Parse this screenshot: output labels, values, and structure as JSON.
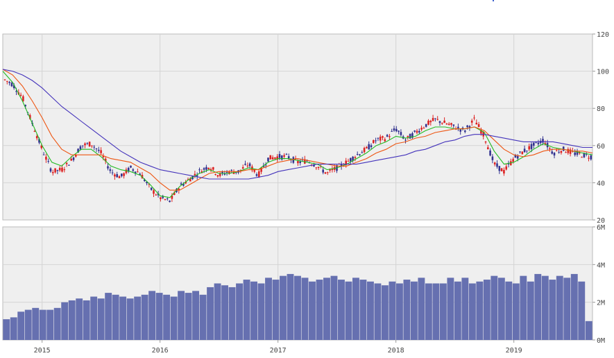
{
  "chart_data": [
    {
      "type": "candlestick",
      "title": "",
      "xlabel": "",
      "ylabel": "",
      "ylim": [
        20,
        120
      ],
      "y_ticks": [
        "20",
        "40",
        "60",
        "80",
        "100",
        "120"
      ],
      "x_ticks": [
        "2015",
        "2016",
        "2017",
        "2018",
        "2019"
      ],
      "x_range": [
        "2014-09",
        "2019-09"
      ],
      "grid": true,
      "up_color": "#dd2222",
      "down_color": "#33338f",
      "price_path": [
        [
          "2014-09-01",
          96
        ],
        [
          "2014-10-01",
          93
        ],
        [
          "2014-11-01",
          86
        ],
        [
          "2014-12-01",
          72
        ],
        [
          "2015-01-01",
          58
        ],
        [
          "2015-02-01",
          46
        ],
        [
          "2015-03-01",
          47
        ],
        [
          "2015-04-01",
          52
        ],
        [
          "2015-05-01",
          60
        ],
        [
          "2015-06-01",
          61
        ],
        [
          "2015-07-01",
          56
        ],
        [
          "2015-08-01",
          46
        ],
        [
          "2015-09-01",
          43
        ],
        [
          "2015-10-01",
          48
        ],
        [
          "2015-11-01",
          45
        ],
        [
          "2015-12-01",
          37
        ],
        [
          "2016-01-01",
          32
        ],
        [
          "2016-02-01",
          30
        ],
        [
          "2016-03-01",
          38
        ],
        [
          "2016-04-01",
          42
        ],
        [
          "2016-05-01",
          46
        ],
        [
          "2016-06-01",
          49
        ],
        [
          "2016-07-01",
          44
        ],
        [
          "2016-08-01",
          46
        ],
        [
          "2016-09-01",
          46
        ],
        [
          "2016-10-01",
          50
        ],
        [
          "2016-11-01",
          44
        ],
        [
          "2016-12-01",
          53
        ],
        [
          "2017-01-01",
          54
        ],
        [
          "2017-02-01",
          54
        ],
        [
          "2017-03-01",
          51
        ],
        [
          "2017-04-01",
          52
        ],
        [
          "2017-05-01",
          49
        ],
        [
          "2017-06-01",
          45
        ],
        [
          "2017-07-01",
          48
        ],
        [
          "2017-08-01",
          51
        ],
        [
          "2017-09-01",
          55
        ],
        [
          "2017-10-01",
          58
        ],
        [
          "2017-11-01",
          63
        ],
        [
          "2017-12-01",
          64
        ],
        [
          "2018-01-01",
          69
        ],
        [
          "2018-02-01",
          63
        ],
        [
          "2018-03-01",
          67
        ],
        [
          "2018-04-01",
          71
        ],
        [
          "2018-05-01",
          74
        ],
        [
          "2018-06-01",
          72
        ],
        [
          "2018-07-01",
          70
        ],
        [
          "2018-08-01",
          68
        ],
        [
          "2018-09-01",
          74
        ],
        [
          "2018-10-01",
          65
        ],
        [
          "2018-11-01",
          50
        ],
        [
          "2018-12-01",
          46
        ],
        [
          "2019-01-01",
          53
        ],
        [
          "2019-02-01",
          57
        ],
        [
          "2019-03-01",
          60
        ],
        [
          "2019-04-01",
          63
        ],
        [
          "2019-05-01",
          56
        ],
        [
          "2019-06-01",
          58
        ],
        [
          "2019-07-01",
          56
        ],
        [
          "2019-08-01",
          55
        ],
        [
          "2019-09-01",
          54
        ]
      ],
      "ma_series": [
        {
          "color": "#22bb22",
          "values": [
            [
              "2014-09-01",
              100
            ],
            [
              "2014-10-01",
              94
            ],
            [
              "2014-11-01",
              84
            ],
            [
              "2014-12-01",
              72
            ],
            [
              "2015-01-01",
              60
            ],
            [
              "2015-02-01",
              51
            ],
            [
              "2015-03-01",
              49
            ],
            [
              "2015-04-01",
              54
            ],
            [
              "2015-05-01",
              58
            ],
            [
              "2015-06-01",
              58
            ],
            [
              "2015-07-01",
              54
            ],
            [
              "2015-08-01",
              49
            ],
            [
              "2015-09-01",
              47
            ],
            [
              "2015-10-01",
              46
            ],
            [
              "2015-11-01",
              44
            ],
            [
              "2015-12-01",
              39
            ],
            [
              "2016-01-01",
              33
            ],
            [
              "2016-02-01",
              32
            ],
            [
              "2016-03-01",
              38
            ],
            [
              "2016-04-01",
              42
            ],
            [
              "2016-05-01",
              45
            ],
            [
              "2016-06-01",
              47
            ],
            [
              "2016-07-01",
              45
            ],
            [
              "2016-08-01",
              45
            ],
            [
              "2016-09-01",
              46
            ],
            [
              "2016-10-01",
              48
            ],
            [
              "2016-11-01",
              47
            ],
            [
              "2016-12-01",
              51
            ],
            [
              "2017-01-01",
              53
            ],
            [
              "2017-02-01",
              53
            ],
            [
              "2017-03-01",
              52
            ],
            [
              "2017-04-01",
              51
            ],
            [
              "2017-05-01",
              50
            ],
            [
              "2017-06-01",
              47
            ],
            [
              "2017-07-01",
              48
            ],
            [
              "2017-08-01",
              50
            ],
            [
              "2017-09-01",
              53
            ],
            [
              "2017-10-01",
              56
            ],
            [
              "2017-11-01",
              60
            ],
            [
              "2017-12-01",
              62
            ],
            [
              "2018-01-01",
              65
            ],
            [
              "2018-02-01",
              64
            ],
            [
              "2018-03-01",
              65
            ],
            [
              "2018-04-01",
              68
            ],
            [
              "2018-05-01",
              70
            ],
            [
              "2018-06-01",
              70
            ],
            [
              "2018-07-01",
              69
            ],
            [
              "2018-08-01",
              69
            ],
            [
              "2018-09-01",
              70
            ],
            [
              "2018-10-01",
              67
            ],
            [
              "2018-11-01",
              57
            ],
            [
              "2018-12-01",
              50
            ],
            [
              "2019-01-01",
              51
            ],
            [
              "2019-02-01",
              54
            ],
            [
              "2019-03-01",
              58
            ],
            [
              "2019-04-01",
              61
            ],
            [
              "2019-05-01",
              59
            ],
            [
              "2019-06-01",
              58
            ],
            [
              "2019-07-01",
              57
            ],
            [
              "2019-08-01",
              56
            ],
            [
              "2019-09-01",
              55
            ]
          ]
        },
        {
          "color": "#ee5511",
          "values": [
            [
              "2014-09-01",
              101
            ],
            [
              "2014-10-01",
              98
            ],
            [
              "2014-11-01",
              92
            ],
            [
              "2014-12-01",
              84
            ],
            [
              "2015-01-01",
              75
            ],
            [
              "2015-02-01",
              65
            ],
            [
              "2015-03-01",
              58
            ],
            [
              "2015-04-01",
              55
            ],
            [
              "2015-05-01",
              55
            ],
            [
              "2015-06-01",
              55
            ],
            [
              "2015-07-01",
              55
            ],
            [
              "2015-08-01",
              53
            ],
            [
              "2015-09-01",
              52
            ],
            [
              "2015-10-01",
              51
            ],
            [
              "2015-11-01",
              48
            ],
            [
              "2015-12-01",
              45
            ],
            [
              "2016-01-01",
              40
            ],
            [
              "2016-02-01",
              36
            ],
            [
              "2016-03-01",
              36
            ],
            [
              "2016-04-01",
              39
            ],
            [
              "2016-05-01",
              42
            ],
            [
              "2016-06-01",
              45
            ],
            [
              "2016-07-01",
              46
            ],
            [
              "2016-08-01",
              46
            ],
            [
              "2016-09-01",
              46
            ],
            [
              "2016-10-01",
              47
            ],
            [
              "2016-11-01",
              47
            ],
            [
              "2016-12-01",
              49
            ],
            [
              "2017-01-01",
              51
            ],
            [
              "2017-02-01",
              52
            ],
            [
              "2017-03-01",
              53
            ],
            [
              "2017-04-01",
              52
            ],
            [
              "2017-05-01",
              51
            ],
            [
              "2017-06-01",
              50
            ],
            [
              "2017-07-01",
              49
            ],
            [
              "2017-08-01",
              49
            ],
            [
              "2017-09-01",
              51
            ],
            [
              "2017-10-01",
              53
            ],
            [
              "2017-11-01",
              56
            ],
            [
              "2017-12-01",
              58
            ],
            [
              "2018-01-01",
              61
            ],
            [
              "2018-02-01",
              62
            ],
            [
              "2018-03-01",
              64
            ],
            [
              "2018-04-01",
              65
            ],
            [
              "2018-05-01",
              67
            ],
            [
              "2018-06-01",
              68
            ],
            [
              "2018-07-01",
              69
            ],
            [
              "2018-08-01",
              69
            ],
            [
              "2018-09-01",
              70
            ],
            [
              "2018-10-01",
              68
            ],
            [
              "2018-11-01",
              63
            ],
            [
              "2018-12-01",
              58
            ],
            [
              "2019-01-01",
              55
            ],
            [
              "2019-02-01",
              54
            ],
            [
              "2019-03-01",
              55
            ],
            [
              "2019-04-01",
              57
            ],
            [
              "2019-05-01",
              58
            ],
            [
              "2019-06-01",
              58
            ],
            [
              "2019-07-01",
              57
            ],
            [
              "2019-08-01",
              57
            ],
            [
              "2019-09-01",
              56
            ]
          ]
        },
        {
          "color": "#4433bb",
          "values": [
            [
              "2014-09-01",
              101
            ],
            [
              "2014-10-01",
              100
            ],
            [
              "2014-11-01",
              98
            ],
            [
              "2014-12-01",
              95
            ],
            [
              "2015-01-01",
              91
            ],
            [
              "2015-02-01",
              86
            ],
            [
              "2015-03-01",
              81
            ],
            [
              "2015-04-01",
              77
            ],
            [
              "2015-05-01",
              73
            ],
            [
              "2015-06-01",
              69
            ],
            [
              "2015-07-01",
              65
            ],
            [
              "2015-08-01",
              61
            ],
            [
              "2015-09-01",
              57
            ],
            [
              "2015-10-01",
              54
            ],
            [
              "2015-11-01",
              51
            ],
            [
              "2015-12-01",
              49
            ],
            [
              "2016-01-01",
              47
            ],
            [
              "2016-02-01",
              46
            ],
            [
              "2016-03-01",
              45
            ],
            [
              "2016-04-01",
              44
            ],
            [
              "2016-05-01",
              43
            ],
            [
              "2016-06-01",
              42
            ],
            [
              "2016-07-01",
              42
            ],
            [
              "2016-08-01",
              42
            ],
            [
              "2016-09-01",
              42
            ],
            [
              "2016-10-01",
              42
            ],
            [
              "2016-11-01",
              43
            ],
            [
              "2016-12-01",
              44
            ],
            [
              "2017-01-01",
              46
            ],
            [
              "2017-02-01",
              47
            ],
            [
              "2017-03-01",
              48
            ],
            [
              "2017-04-01",
              49
            ],
            [
              "2017-05-01",
              50
            ],
            [
              "2017-06-01",
              50
            ],
            [
              "2017-07-01",
              50
            ],
            [
              "2017-08-01",
              50
            ],
            [
              "2017-09-01",
              50
            ],
            [
              "2017-10-01",
              51
            ],
            [
              "2017-11-01",
              52
            ],
            [
              "2017-12-01",
              53
            ],
            [
              "2018-01-01",
              54
            ],
            [
              "2018-02-01",
              55
            ],
            [
              "2018-03-01",
              57
            ],
            [
              "2018-04-01",
              58
            ],
            [
              "2018-05-01",
              60
            ],
            [
              "2018-06-01",
              62
            ],
            [
              "2018-07-01",
              63
            ],
            [
              "2018-08-01",
              65
            ],
            [
              "2018-09-01",
              66
            ],
            [
              "2018-10-01",
              66
            ],
            [
              "2018-11-01",
              65
            ],
            [
              "2018-12-01",
              64
            ],
            [
              "2019-01-01",
              63
            ],
            [
              "2019-02-01",
              62
            ],
            [
              "2019-03-01",
              62
            ],
            [
              "2019-04-01",
              62
            ],
            [
              "2019-05-01",
              62
            ],
            [
              "2019-06-01",
              61
            ],
            [
              "2019-07-01",
              60
            ],
            [
              "2019-08-01",
              59
            ],
            [
              "2019-09-01",
              59
            ]
          ]
        }
      ]
    },
    {
      "type": "bar",
      "title": "",
      "xlabel": "",
      "ylabel": "",
      "ylim": [
        0,
        6
      ],
      "y_unit": "M",
      "y_ticks": [
        "0M",
        "2M",
        "4M",
        "6M"
      ],
      "x_ticks": [
        "2015",
        "2016",
        "2017",
        "2018",
        "2019"
      ],
      "x_range": [
        "2014-09",
        "2019-09"
      ],
      "grid": true,
      "bar_color": "#6670b0",
      "values": [
        1.1,
        1.2,
        1.5,
        1.6,
        1.7,
        1.6,
        1.6,
        1.7,
        2.0,
        2.1,
        2.2,
        2.1,
        2.3,
        2.2,
        2.5,
        2.4,
        2.3,
        2.2,
        2.3,
        2.4,
        2.6,
        2.5,
        2.4,
        2.3,
        2.6,
        2.5,
        2.6,
        2.4,
        2.8,
        3.0,
        2.9,
        2.8,
        3.0,
        3.2,
        3.1,
        3.0,
        3.3,
        3.2,
        3.4,
        3.5,
        3.4,
        3.3,
        3.1,
        3.2,
        3.3,
        3.4,
        3.2,
        3.1,
        3.3,
        3.2,
        3.1,
        3.0,
        2.9,
        3.1,
        3.0,
        3.2,
        3.1,
        3.3,
        3.0,
        3.0,
        3.0,
        3.3,
        3.1,
        3.3,
        3.0,
        3.1,
        3.2,
        3.4,
        3.3,
        3.1,
        3.0,
        3.4,
        3.1,
        3.5,
        3.4,
        3.2,
        3.4,
        3.3,
        3.5,
        3.1,
        1.0
      ]
    }
  ]
}
